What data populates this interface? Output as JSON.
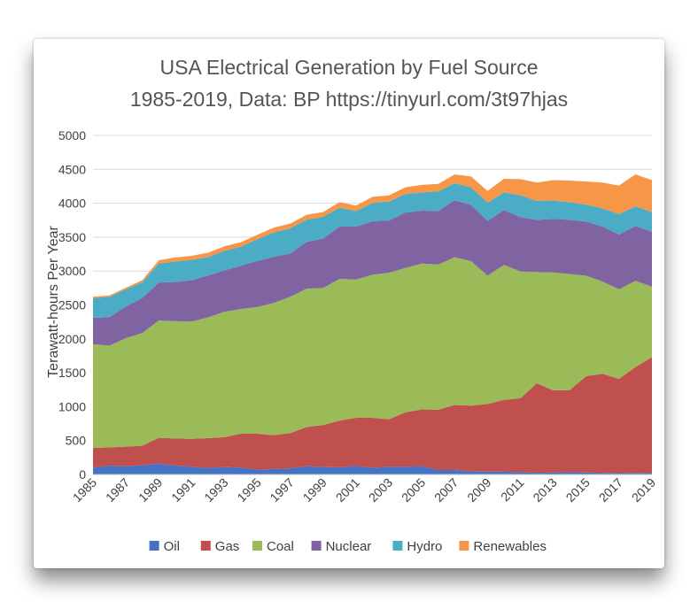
{
  "chart_data": {
    "type": "area",
    "stacked": true,
    "title": "USA Electrical Generation by Fuel Source",
    "subtitle": "1985-2019, Data: BP https://tinyurl.com/3t97hjas",
    "xlabel": "",
    "ylabel": "Terawatt-hours Per Year",
    "ylim": [
      0,
      5000
    ],
    "yticks": [
      "0",
      "500",
      "1000",
      "1500",
      "2000",
      "2500",
      "3000",
      "3500",
      "4000",
      "4500",
      "5000"
    ],
    "xticks": [
      "1985",
      "1987",
      "1989",
      "1991",
      "1993",
      "1995",
      "1997",
      "1999",
      "2001",
      "2003",
      "2005",
      "2007",
      "2009",
      "2011",
      "2013",
      "2015",
      "2017",
      "2019"
    ],
    "grid": true,
    "legend_position": "bottom",
    "x": [
      1985,
      1986,
      1987,
      1988,
      1989,
      1990,
      1991,
      1992,
      1993,
      1994,
      1995,
      1996,
      1997,
      1998,
      1999,
      2000,
      2001,
      2002,
      2003,
      2004,
      2005,
      2006,
      2007,
      2008,
      2009,
      2010,
      2011,
      2012,
      2013,
      2014,
      2015,
      2016,
      2017,
      2018,
      2019
    ],
    "series": [
      {
        "name": "Oil",
        "color": "#4472C4",
        "values": [
          100,
          130,
          120,
          135,
          160,
          130,
          115,
          95,
          110,
          100,
          70,
          80,
          90,
          120,
          110,
          105,
          125,
          95,
          115,
          115,
          120,
          65,
          65,
          45,
          40,
          40,
          35,
          25,
          30,
          35,
          30,
          25,
          20,
          25,
          20
        ]
      },
      {
        "name": "Gas",
        "color": "#C0504D",
        "values": [
          290,
          270,
          290,
          290,
          380,
          400,
          410,
          440,
          440,
          500,
          530,
          500,
          520,
          580,
          620,
          690,
          710,
          740,
          700,
          800,
          840,
          890,
          960,
          970,
          1000,
          1060,
          1090,
          1320,
          1210,
          1210,
          1420,
          1460,
          1390,
          1560,
          1710
        ]
      },
      {
        "name": "Coal",
        "color": "#9BBB59",
        "values": [
          1530,
          1500,
          1600,
          1660,
          1730,
          1730,
          1730,
          1780,
          1850,
          1840,
          1870,
          1950,
          2010,
          2040,
          2020,
          2090,
          2040,
          2110,
          2160,
          2130,
          2150,
          2140,
          2180,
          2130,
          1890,
          1990,
          1870,
          1640,
          1740,
          1710,
          1480,
          1360,
          1320,
          1270,
          1040
        ]
      },
      {
        "name": "Nuclear",
        "color": "#8064A2",
        "values": [
          390,
          420,
          470,
          520,
          560,
          580,
          610,
          620,
          610,
          640,
          680,
          680,
          640,
          690,
          730,
          770,
          780,
          790,
          770,
          820,
          780,
          790,
          840,
          830,
          810,
          810,
          800,
          770,
          790,
          800,
          800,
          810,
          810,
          810,
          810
        ]
      },
      {
        "name": "Hydro",
        "color": "#4BACC6",
        "values": [
          290,
          300,
          250,
          230,
          280,
          300,
          300,
          270,
          290,
          280,
          320,
          360,
          370,
          330,
          320,
          280,
          230,
          270,
          280,
          270,
          270,
          290,
          250,
          260,
          270,
          260,
          320,
          280,
          270,
          260,
          250,
          270,
          300,
          290,
          290
        ]
      },
      {
        "name": "Renewables",
        "color": "#F79646",
        "values": [
          20,
          20,
          25,
          30,
          50,
          60,
          60,
          65,
          65,
          65,
          65,
          70,
          70,
          70,
          70,
          80,
          80,
          90,
          90,
          100,
          110,
          110,
          130,
          160,
          170,
          200,
          240,
          270,
          300,
          320,
          340,
          380,
          420,
          470,
          470
        ]
      }
    ]
  }
}
